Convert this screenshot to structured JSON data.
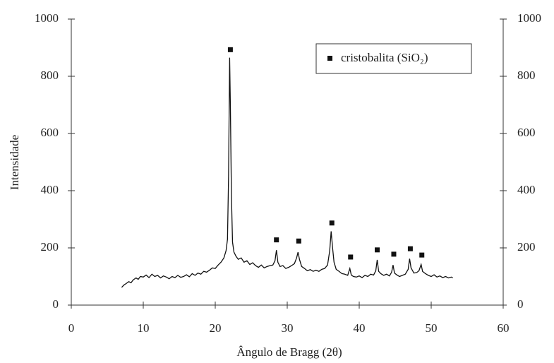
{
  "chart_data": {
    "type": "line",
    "x_label": "Ângulo de Bragg (2θ)",
    "y_label": "Intensidade",
    "xlim": [
      0,
      60
    ],
    "xticks": [
      0,
      10,
      20,
      30,
      40,
      50,
      60
    ],
    "ylim": [
      0,
      1000
    ],
    "yticks": [
      0,
      200,
      400,
      600,
      800,
      1000
    ],
    "y2lim": [
      0,
      1000
    ],
    "y2ticks": [
      0,
      200,
      400,
      600,
      800,
      1000
    ],
    "color": "#111111",
    "legend": "top-right",
    "x": [
      7,
      7.3,
      7.6,
      8,
      8.3,
      8.6,
      9,
      9.3,
      9.6,
      10,
      10.4,
      10.8,
      11.2,
      11.6,
      12,
      12.4,
      12.8,
      13.2,
      13.6,
      14,
      14.4,
      14.8,
      15.2,
      15.6,
      16,
      16.4,
      16.8,
      17.2,
      17.6,
      18,
      18.4,
      18.8,
      19.2,
      19.6,
      20,
      20.4,
      20.8,
      21.2,
      21.5,
      21.7,
      21.85,
      22,
      22.1,
      22.25,
      22.4,
      22.6,
      22.9,
      23.2,
      23.6,
      24,
      24.4,
      24.8,
      25.2,
      25.6,
      26,
      26.4,
      26.8,
      27.2,
      27.6,
      28,
      28.3,
      28.5,
      28.7,
      29,
      29.4,
      29.8,
      30.2,
      30.6,
      31,
      31.3,
      31.5,
      31.7,
      32,
      32.4,
      32.8,
      33.2,
      33.6,
      34,
      34.4,
      34.8,
      35.2,
      35.6,
      35.9,
      36.1,
      36.3,
      36.5,
      36.8,
      37.2,
      37.6,
      38,
      38.4,
      38.7,
      38.9,
      39.2,
      39.6,
      40,
      40.4,
      40.8,
      41.2,
      41.6,
      42,
      42.3,
      42.5,
      42.7,
      43,
      43.4,
      43.8,
      44.2,
      44.5,
      44.7,
      44.9,
      45.2,
      45.6,
      46,
      46.4,
      46.8,
      47,
      47.2,
      47.6,
      48,
      48.3,
      48.6,
      48.8,
      49.2,
      49.6,
      50,
      50.4,
      50.8,
      51.2,
      51.6,
      52,
      52.4,
      52.8,
      53
    ],
    "values": [
      62,
      70,
      75,
      82,
      78,
      88,
      95,
      90,
      100,
      98,
      105,
      96,
      108,
      100,
      104,
      95,
      102,
      98,
      92,
      100,
      96,
      104,
      97,
      100,
      106,
      99,
      110,
      104,
      112,
      108,
      118,
      115,
      122,
      130,
      128,
      140,
      150,
      165,
      190,
      230,
      450,
      865,
      700,
      380,
      220,
      185,
      170,
      160,
      165,
      150,
      155,
      142,
      148,
      138,
      132,
      140,
      130,
      135,
      138,
      140,
      155,
      192,
      150,
      135,
      138,
      128,
      132,
      138,
      145,
      165,
      185,
      160,
      135,
      128,
      120,
      124,
      118,
      122,
      118,
      125,
      128,
      140,
      190,
      258,
      200,
      150,
      125,
      118,
      110,
      108,
      104,
      128,
      105,
      100,
      98,
      102,
      96,
      104,
      100,
      108,
      105,
      120,
      158,
      118,
      110,
      104,
      108,
      102,
      115,
      140,
      112,
      106,
      100,
      104,
      108,
      125,
      162,
      130,
      112,
      114,
      120,
      142,
      118,
      110,
      104,
      100,
      106,
      98,
      102,
      96,
      100,
      95,
      98,
      95
    ],
    "markers": {
      "type": "scatter",
      "name": "cristobalita (SiO₂)",
      "color": "#111111",
      "x": [
        22.1,
        28.5,
        31.6,
        36.2,
        38.8,
        42.5,
        44.8,
        47.1,
        48.7
      ],
      "values": [
        893,
        228,
        224,
        287,
        168,
        193,
        178,
        197,
        175
      ]
    }
  }
}
